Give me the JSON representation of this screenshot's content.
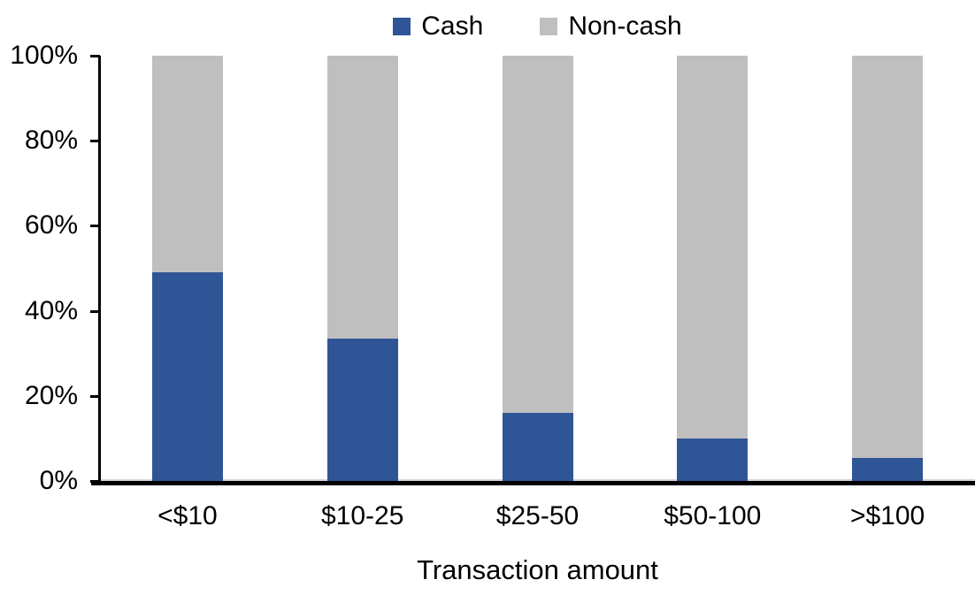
{
  "chart_data": {
    "type": "bar",
    "stacked": true,
    "percent_stacked": true,
    "title": "",
    "xlabel": "Transaction amount",
    "ylabel": "",
    "categories": [
      "<$10",
      "$10-25",
      "$25-50",
      "$50-100",
      ">$100"
    ],
    "series": [
      {
        "name": "Cash",
        "color": "#2F5597",
        "values": [
          49,
          33.5,
          16,
          10,
          5.5
        ]
      },
      {
        "name": "Non-cash",
        "color": "#BFBFBF",
        "values": [
          51,
          66.5,
          84,
          90,
          94.5
        ]
      }
    ],
    "ylim": [
      0,
      100
    ],
    "ytick_step": 20,
    "ytick_labels": [
      "0%",
      "20%",
      "40%",
      "60%",
      "80%",
      "100%"
    ],
    "legend_position": "top-center",
    "grid": false,
    "axis_color": "#000000",
    "zero_gridline_color": "#D6D6D6"
  }
}
